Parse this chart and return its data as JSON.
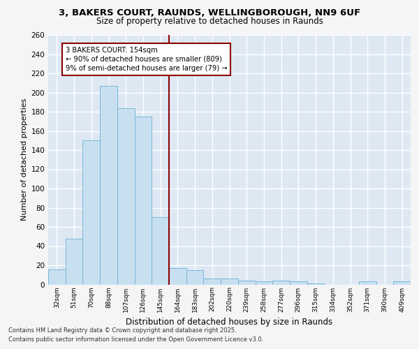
{
  "title1": "3, BAKERS COURT, RAUNDS, WELLINGBOROUGH, NN9 6UF",
  "title2": "Size of property relative to detached houses in Raunds",
  "xlabel": "Distribution of detached houses by size in Raunds",
  "ylabel": "Number of detached properties",
  "annotation_title": "3 BAKERS COURT: 154sqm",
  "annotation_line1": "← 90% of detached houses are smaller (809)",
  "annotation_line2": "9% of semi-detached houses are larger (79) →",
  "bar_labels": [
    "32sqm",
    "51sqm",
    "70sqm",
    "88sqm",
    "107sqm",
    "126sqm",
    "145sqm",
    "164sqm",
    "183sqm",
    "202sqm",
    "220sqm",
    "239sqm",
    "258sqm",
    "277sqm",
    "296sqm",
    "315sqm",
    "334sqm",
    "352sqm",
    "371sqm",
    "390sqm",
    "409sqm"
  ],
  "bar_values": [
    16,
    48,
    150,
    207,
    184,
    175,
    70,
    17,
    15,
    6,
    6,
    4,
    3,
    4,
    3,
    1,
    0,
    0,
    3,
    0,
    3
  ],
  "bar_color": "#c8dff0",
  "bar_edge_color": "#7ab8d8",
  "vline_color": "#8b0000",
  "vline_x": 6.5,
  "annotation_box_color": "#8b0000",
  "background_color": "#dde8f3",
  "grid_color": "#ffffff",
  "fig_background": "#f5f5f5",
  "ylim": [
    0,
    260
  ],
  "yticks": [
    0,
    20,
    40,
    60,
    80,
    100,
    120,
    140,
    160,
    180,
    200,
    220,
    240,
    260
  ],
  "footer1": "Contains HM Land Registry data © Crown copyright and database right 2025.",
  "footer2": "Contains public sector information licensed under the Open Government Licence v3.0."
}
